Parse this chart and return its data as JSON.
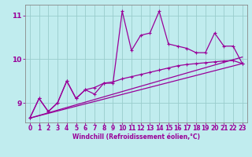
{
  "background_color": "#c0ecee",
  "grid_color": "#99cccc",
  "line_color": "#990099",
  "xlabel": "Windchill (Refroidissement éolien,°C)",
  "ylim": [
    8.55,
    11.25
  ],
  "xlim": [
    -0.5,
    23.5
  ],
  "yticks": [
    9,
    10,
    11
  ],
  "xticks": [
    0,
    1,
    2,
    3,
    4,
    5,
    6,
    7,
    8,
    9,
    10,
    11,
    12,
    13,
    14,
    15,
    16,
    17,
    18,
    19,
    20,
    21,
    22,
    23
  ],
  "jagged_x": [
    0,
    1,
    2,
    3,
    4,
    5,
    6,
    7,
    8,
    9,
    10,
    11,
    12,
    13,
    14,
    15,
    16,
    17,
    18,
    19,
    20,
    21,
    22,
    23
  ],
  "jagged_y": [
    8.65,
    9.1,
    8.8,
    9.0,
    9.5,
    9.1,
    9.3,
    9.2,
    9.45,
    9.45,
    11.1,
    10.2,
    10.55,
    10.6,
    11.1,
    10.35,
    10.3,
    10.25,
    10.15,
    10.15,
    10.6,
    10.3,
    10.3,
    9.9
  ],
  "smooth_x": [
    0,
    1,
    2,
    3,
    4,
    5,
    6,
    7,
    8,
    9,
    10,
    11,
    12,
    13,
    14,
    15,
    16,
    17,
    18,
    19,
    20,
    21,
    22,
    23
  ],
  "smooth_y": [
    8.65,
    9.1,
    8.8,
    9.0,
    9.5,
    9.1,
    9.3,
    9.35,
    9.45,
    9.48,
    9.55,
    9.6,
    9.65,
    9.7,
    9.75,
    9.8,
    9.85,
    9.88,
    9.9,
    9.92,
    9.94,
    9.96,
    9.97,
    9.9
  ],
  "trend1_x": [
    0,
    23
  ],
  "trend1_y": [
    8.65,
    9.9
  ],
  "trend2_x": [
    0,
    23
  ],
  "trend2_y": [
    8.65,
    10.05
  ]
}
